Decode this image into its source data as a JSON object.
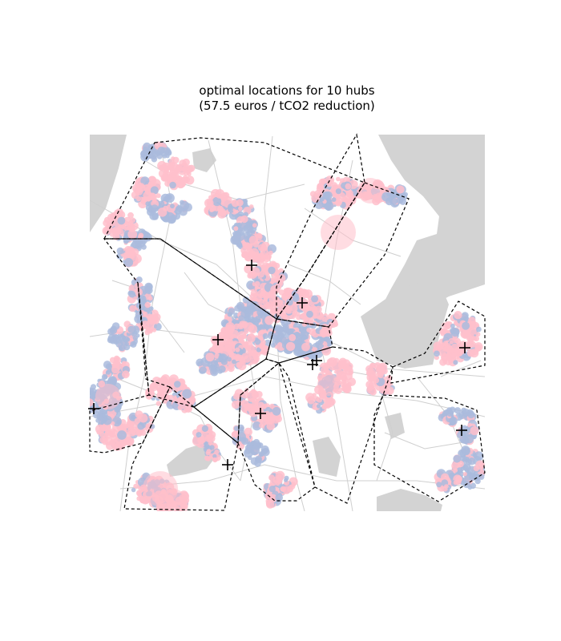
{
  "figure": {
    "title_line1": "optimal locations for 10 hubs",
    "title_line2": "(57.5 euros / tCO2 reduction)"
  },
  "colors": {
    "background": "#ffffff",
    "water": "#d3d3d3",
    "roads": "#cfcfcf",
    "demand_pink": "#ffc0cb",
    "demand_blue": "#aabbdd",
    "hub_marker": "#000000",
    "cell_boundary": "#000000"
  },
  "legend": "none",
  "axes": "hidden",
  "hubs": {
    "count": 10,
    "marker": "plus",
    "boundary_style": "dashed"
  }
}
